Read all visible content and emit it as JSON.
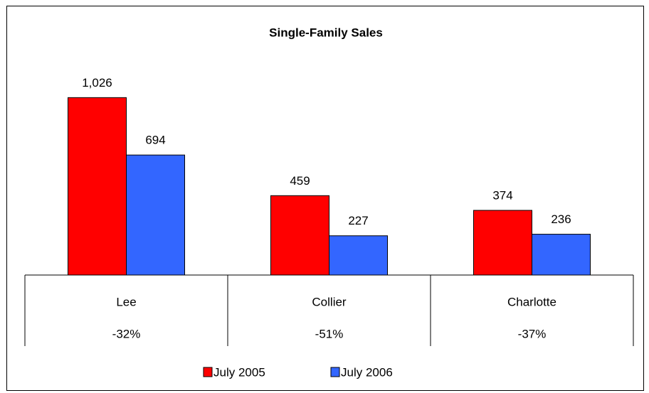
{
  "chart_data": {
    "type": "bar",
    "title": "Single-Family Sales",
    "categories": [
      "Lee",
      "Collier",
      "Charlotte"
    ],
    "change_labels": [
      "-32%",
      "-51%",
      "-37%"
    ],
    "series": [
      {
        "name": "July 2005",
        "color": "#ff0000",
        "values": [
          1026,
          459,
          374
        ],
        "value_labels": [
          "1,026",
          "459",
          "374"
        ]
      },
      {
        "name": "July 2006",
        "color": "#3366ff",
        "values": [
          694,
          227,
          236
        ],
        "value_labels": [
          "694",
          "227",
          "236"
        ]
      }
    ],
    "ylim": [
      0,
      1200
    ],
    "legend": "bottom"
  }
}
